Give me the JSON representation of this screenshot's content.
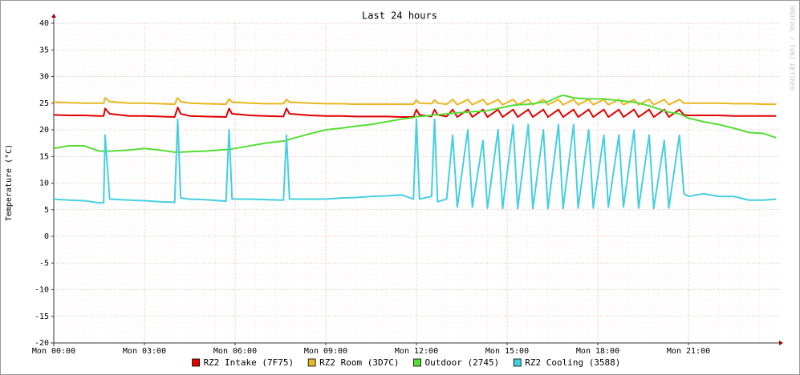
{
  "chart_data": {
    "type": "line",
    "title": "Last 24 hours",
    "ylabel": "Temperature (°C)",
    "watermark": "RRDTOOL / TOBI OETIKER",
    "xlim": [
      0,
      24
    ],
    "ylim": [
      -20,
      40
    ],
    "xticks": [
      {
        "value": 0,
        "label": "Mon 00:00"
      },
      {
        "value": 3,
        "label": "Mon 03:00"
      },
      {
        "value": 6,
        "label": "Mon 06:00"
      },
      {
        "value": 9,
        "label": "Mon 09:00"
      },
      {
        "value": 12,
        "label": "Mon 12:00"
      },
      {
        "value": 15,
        "label": "Mon 15:00"
      },
      {
        "value": 18,
        "label": "Mon 18:00"
      },
      {
        "value": 21,
        "label": "Mon 21:00"
      }
    ],
    "yticks": [
      -20,
      -15,
      -10,
      -5,
      0,
      5,
      10,
      15,
      20,
      25,
      30,
      35,
      40
    ],
    "grid": true,
    "legend": "bottom",
    "x": [
      0,
      0.5,
      1,
      1.5,
      1.65,
      1.7,
      1.85,
      2.5,
      3,
      3.5,
      4.0,
      4.1,
      4.2,
      4.5,
      5,
      5.7,
      5.8,
      5.9,
      6.5,
      7,
      7.6,
      7.7,
      7.8,
      8.5,
      9,
      9.5,
      10,
      10.5,
      11,
      11.5,
      11.9,
      12.0,
      12.1,
      12.5,
      12.6,
      12.7,
      13.0,
      13.2,
      13.35,
      13.7,
      13.85,
      14.2,
      14.35,
      14.7,
      14.85,
      15.2,
      15.35,
      15.7,
      15.85,
      16.2,
      16.35,
      16.7,
      16.85,
      17.2,
      17.35,
      17.7,
      17.85,
      18.2,
      18.35,
      18.7,
      18.85,
      19.2,
      19.35,
      19.7,
      19.85,
      20.2,
      20.35,
      20.7,
      20.85,
      21.0,
      21.5,
      22,
      22.5,
      23,
      23.5,
      23.9
    ],
    "series": [
      {
        "name": "RZ2 Intake (7F75)",
        "color": "#e00000",
        "values": [
          22.8,
          22.7,
          22.7,
          22.6,
          22.6,
          24,
          23,
          22.6,
          22.6,
          22.5,
          22.4,
          24.2,
          23,
          22.6,
          22.5,
          22.4,
          24,
          23,
          22.7,
          22.6,
          22.5,
          24,
          23,
          22.7,
          22.6,
          22.6,
          22.5,
          22.5,
          22.5,
          22.4,
          22.4,
          23.8,
          22.8,
          22.5,
          23.8,
          22.8,
          22.5,
          23.8,
          22.4,
          23.8,
          22.4,
          23.8,
          22.4,
          23.8,
          22.4,
          23.8,
          22.4,
          23.8,
          22.4,
          23.8,
          22.4,
          23.8,
          22.4,
          23.8,
          22.4,
          23.8,
          22.4,
          23.8,
          22.4,
          23.8,
          22.4,
          23.8,
          22.4,
          23.8,
          22.4,
          23.8,
          22.4,
          23.8,
          22.8,
          22.7,
          22.7,
          22.7,
          22.6,
          22.6,
          22.6,
          22.6
        ]
      },
      {
        "name": "RZ2 Room (3D7C)",
        "color": "#e8b820",
        "values": [
          25.2,
          25.1,
          25,
          25,
          25,
          26,
          25.3,
          25,
          25,
          24.9,
          24.8,
          26,
          25.3,
          25,
          24.9,
          24.8,
          25.8,
          25.2,
          25,
          24.9,
          24.9,
          25.7,
          25.2,
          25,
          24.9,
          24.9,
          24.8,
          24.8,
          24.8,
          24.8,
          24.8,
          25.6,
          25,
          24.9,
          25.6,
          25,
          24.8,
          25.7,
          24.7,
          25.7,
          24.7,
          25.7,
          24.7,
          25.7,
          24.7,
          25.7,
          24.7,
          25.7,
          24.7,
          25.7,
          24.7,
          25.7,
          24.7,
          25.7,
          24.7,
          25.7,
          24.7,
          25.7,
          24.7,
          25.7,
          24.7,
          25.7,
          24.7,
          25.7,
          24.7,
          25.7,
          24.7,
          25.7,
          25,
          25,
          25,
          25,
          24.9,
          24.9,
          24.8,
          24.8
        ]
      },
      {
        "name": "Outdoor (2745)",
        "color": "#55dd33",
        "values": [
          16.5,
          17,
          17,
          16,
          16,
          16,
          16,
          16.2,
          16.5,
          16.2,
          15.8,
          15.8,
          15.8,
          15.9,
          16,
          16.3,
          16.3,
          16.4,
          17,
          17.5,
          17.9,
          18,
          18.2,
          19.3,
          20,
          20.3,
          20.7,
          21,
          21.5,
          22,
          22.3,
          22.5,
          22.5,
          22.7,
          22.8,
          22.8,
          23,
          23.1,
          23.2,
          23.3,
          23.4,
          23.5,
          23.6,
          24,
          24.2,
          24.6,
          24.7,
          24.8,
          24.9,
          25.2,
          25.3,
          26.2,
          26.5,
          26,
          25.9,
          25.8,
          25.8,
          25.8,
          25.7,
          25.5,
          25.4,
          25.2,
          25,
          24.5,
          24.2,
          23.6,
          23.3,
          23,
          22.6,
          22.2,
          21.5,
          21,
          20.3,
          19.5,
          19.3,
          18.5
        ]
      },
      {
        "name": "RZ2 Cooling (3588)",
        "color": "#44d0e0",
        "values": [
          7,
          6.8,
          6.7,
          6.3,
          6.3,
          19,
          7,
          6.8,
          6.7,
          6.5,
          6.4,
          22,
          7.2,
          7,
          6.9,
          6.6,
          20,
          7,
          7,
          6.9,
          6.8,
          19,
          7,
          7,
          7,
          7.2,
          7.3,
          7.5,
          7.6,
          7.8,
          7,
          22,
          7,
          7.5,
          22,
          6.5,
          7,
          19,
          5.5,
          20,
          5.5,
          18,
          5.3,
          20,
          5.2,
          21,
          5.2,
          21,
          5.2,
          20,
          5.2,
          21,
          5.2,
          21,
          5.3,
          20,
          5.3,
          19,
          5.5,
          19,
          5.5,
          20,
          5.3,
          19,
          5.2,
          18,
          5.3,
          19,
          8,
          7.5,
          8,
          7.5,
          7.5,
          6.8,
          6.8,
          7
        ]
      }
    ]
  }
}
